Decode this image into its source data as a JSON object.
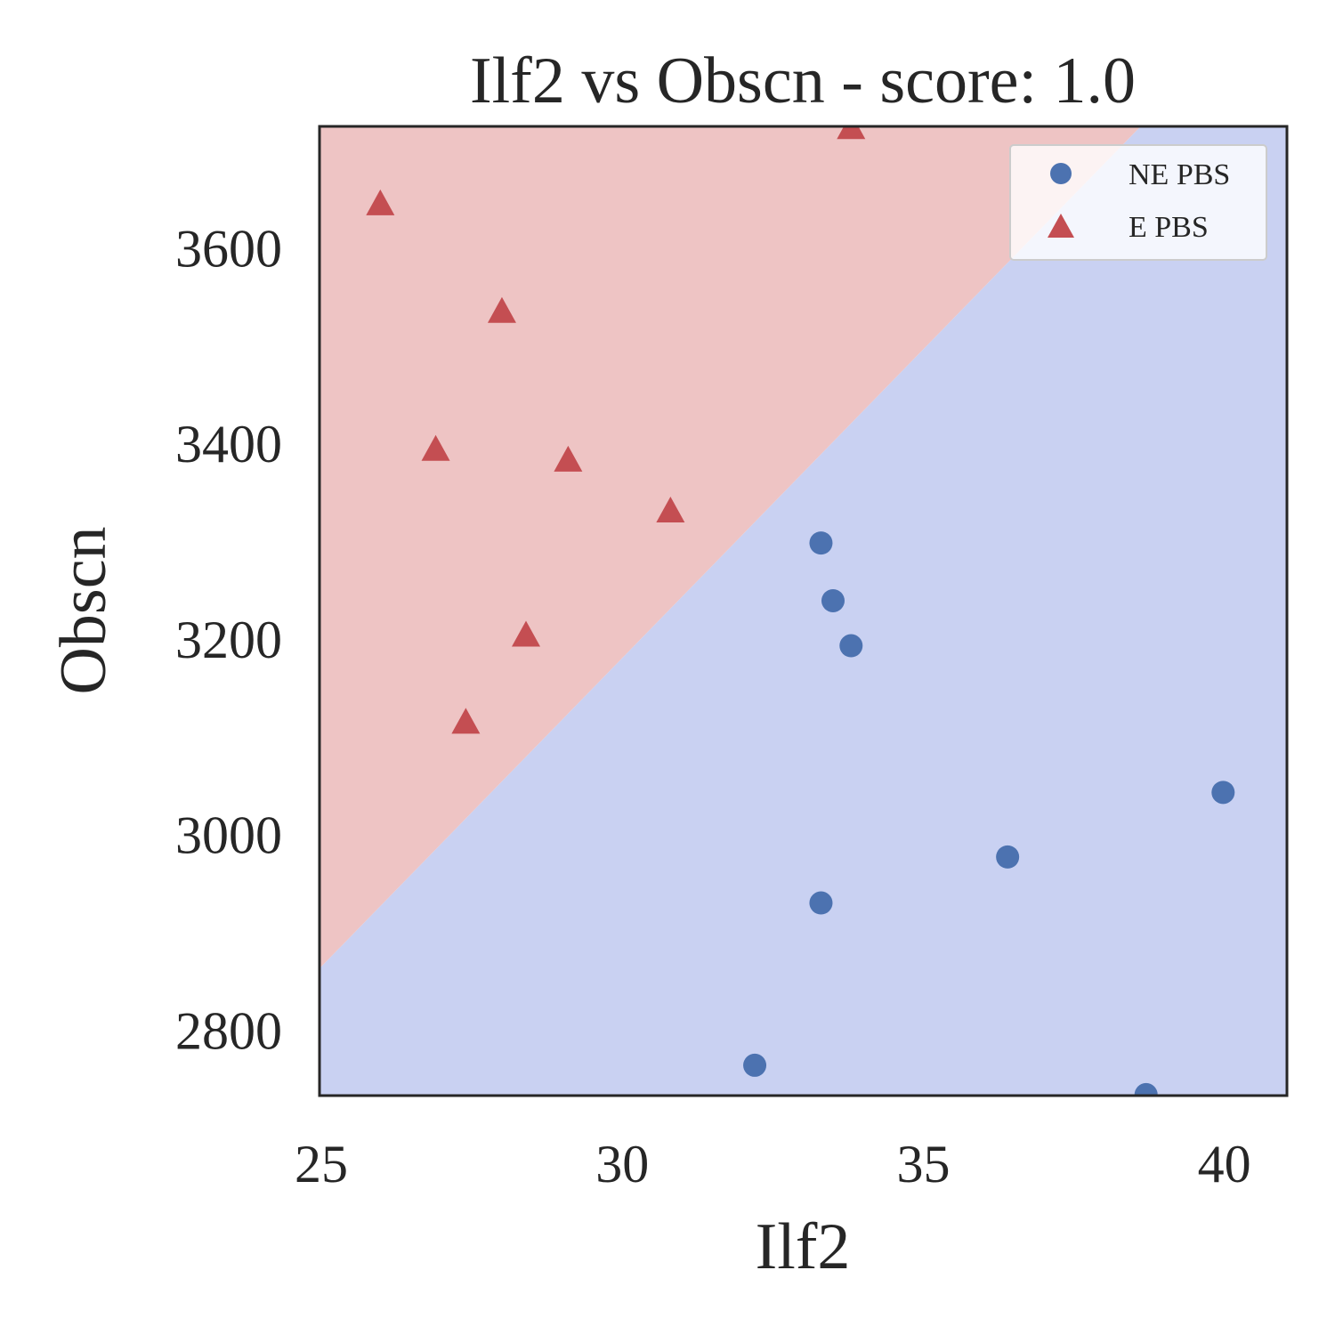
{
  "chart_data": {
    "type": "scatter",
    "title": "Ilf2 vs Obscn - score: 1.0",
    "xlabel": "Ilf2",
    "ylabel": "Obscn",
    "xlim": [
      24.97,
      41.04
    ],
    "ylim": [
      2733,
      3724
    ],
    "x_ticks": [
      25,
      30,
      35,
      40
    ],
    "y_ticks": [
      2800,
      3000,
      3200,
      3400,
      3600
    ],
    "grid": false,
    "legend_position": "top-right",
    "decision_boundary": {
      "line": [
        [
          24.97,
          2863
        ],
        [
          38.61,
          3724
        ]
      ],
      "regions": [
        {
          "side": "above",
          "color": "#eec4c4",
          "class": "E PBS"
        },
        {
          "side": "below",
          "color": "#c9d1f2",
          "class": "NE PBS"
        }
      ]
    },
    "series": [
      {
        "name": "NE PBS",
        "marker": "circle",
        "color": "#4c72b0",
        "points": [
          {
            "x": 33.3,
            "y": 3298
          },
          {
            "x": 33.5,
            "y": 3239
          },
          {
            "x": 33.8,
            "y": 3193
          },
          {
            "x": 39.98,
            "y": 3043
          },
          {
            "x": 36.4,
            "y": 2977
          },
          {
            "x": 33.3,
            "y": 2930
          },
          {
            "x": 32.2,
            "y": 2764
          },
          {
            "x": 38.7,
            "y": 2734
          }
        ]
      },
      {
        "name": "E PBS",
        "marker": "triangle",
        "color": "#c44e52",
        "points": [
          {
            "x": 25.98,
            "y": 3644
          },
          {
            "x": 28.0,
            "y": 3534
          },
          {
            "x": 26.9,
            "y": 3393
          },
          {
            "x": 29.1,
            "y": 3382
          },
          {
            "x": 30.8,
            "y": 3330
          },
          {
            "x": 28.4,
            "y": 3203
          },
          {
            "x": 27.4,
            "y": 3114
          },
          {
            "x": 33.8,
            "y": 3722
          }
        ]
      }
    ]
  }
}
